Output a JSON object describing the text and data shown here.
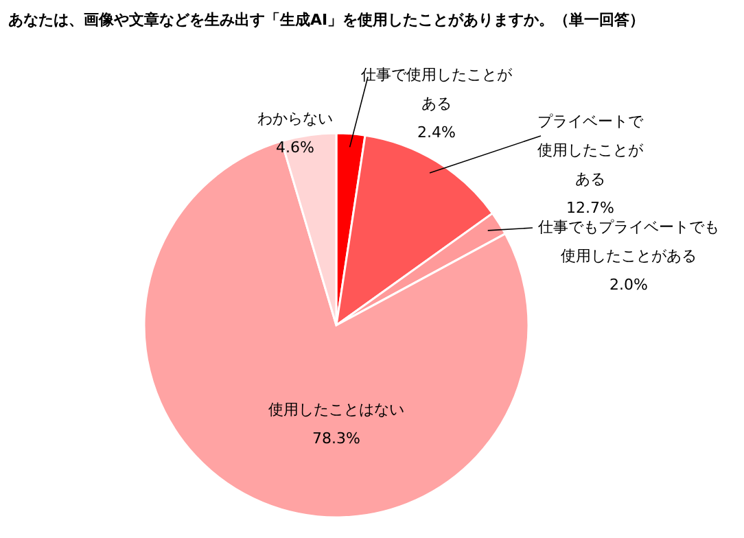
{
  "chart_data": {
    "type": "pie",
    "title": "あなたは、画像や文章などを生み出す「生成AI」を使用したことがありますか。（単一回答）",
    "categories": [
      "仕事で使用したことがある",
      "プライベートで使用したことがある",
      "仕事でもプライベートでも使用したことがある",
      "使用したことはない",
      "わからない"
    ],
    "values": [
      2.4,
      12.7,
      2.0,
      78.3,
      4.6
    ],
    "value_labels": [
      "2.4%",
      "12.7%",
      "2.0%",
      "78.3%",
      "4.6%"
    ],
    "colors": [
      "#ff0000",
      "#ff5757",
      "#ff9a9a",
      "#ffa3a3",
      "#ffd5d5"
    ]
  }
}
